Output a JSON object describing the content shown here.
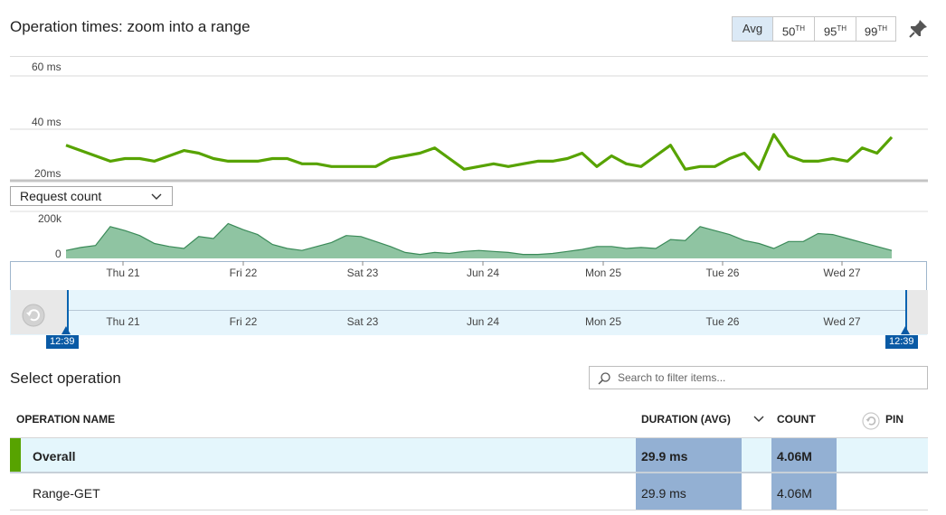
{
  "header": {
    "title": "Operation times: zoom into a range",
    "percentiles": [
      {
        "label": "Avg",
        "sup": "",
        "active": true
      },
      {
        "label": "50",
        "sup": "TH",
        "active": false
      },
      {
        "label": "95",
        "sup": "TH",
        "active": false
      },
      {
        "label": "99",
        "sup": "TH",
        "active": false
      }
    ]
  },
  "colors": {
    "duration_line": "#57a300",
    "count_area": "#8fc4a2",
    "count_line": "#3a8a58",
    "accent_blue": "#0a5aa5",
    "selected_row": "#e4f6fc",
    "value_cell": "#93b0d3"
  },
  "chart_data": [
    {
      "type": "line",
      "series": [
        {
          "values": [
            34,
            32,
            30,
            28,
            29,
            29,
            28,
            30,
            32,
            31,
            29,
            28,
            28,
            28,
            29,
            29,
            27,
            27,
            26,
            26,
            26,
            26,
            29,
            30,
            31,
            33,
            29,
            25,
            26,
            27,
            26,
            27,
            28,
            28,
            29,
            31,
            26,
            30,
            27,
            26,
            30,
            34,
            25,
            26,
            26,
            29,
            31,
            25,
            38,
            30,
            28,
            28,
            29,
            28,
            33,
            31,
            37
          ]
        }
      ],
      "y_ticks": [
        "60 ms",
        "40 ms",
        "20ms"
      ],
      "ylim": [
        20,
        60
      ],
      "grid": true
    },
    {
      "type": "area",
      "metric_label": "Request count",
      "series": [
        {
          "values": [
            40,
            55,
            65,
            160,
            140,
            115,
            75,
            60,
            50,
            110,
            100,
            175,
            145,
            120,
            70,
            50,
            40,
            60,
            80,
            115,
            110,
            85,
            60,
            30,
            20,
            30,
            25,
            35,
            40,
            35,
            30,
            20,
            20,
            25,
            35,
            45,
            60,
            60,
            50,
            55,
            50,
            95,
            90,
            160,
            140,
            120,
            90,
            75,
            50,
            85,
            85,
            125,
            120,
            100,
            80,
            60,
            40
          ]
        }
      ],
      "y_ticks": [
        "200k",
        "0"
      ],
      "ylim": [
        0,
        200000
      ],
      "x_ticks": [
        "Thu 21",
        "Fri 22",
        "Sat 23",
        "Jun 24",
        "Mon 25",
        "Tue 26",
        "Wed 27"
      ]
    }
  ],
  "brush": {
    "x_ticks": [
      "Thu 21",
      "Fri 22",
      "Sat 23",
      "Jun 24",
      "Mon 25",
      "Tue 26",
      "Wed 27"
    ],
    "start_time": "12:39",
    "end_time": "12:39"
  },
  "operations": {
    "title": "Select operation",
    "search_placeholder": "Search to filter items...",
    "columns": {
      "name": "OPERATION NAME",
      "duration": "DURATION (AVG)",
      "count": "COUNT",
      "pin": "PIN"
    },
    "rows": [
      {
        "name": "Overall",
        "duration": "29.9 ms",
        "count": "4.06M",
        "selected": true
      },
      {
        "name": "Range-GET",
        "duration": "29.9 ms",
        "count": "4.06M",
        "selected": false
      }
    ]
  }
}
